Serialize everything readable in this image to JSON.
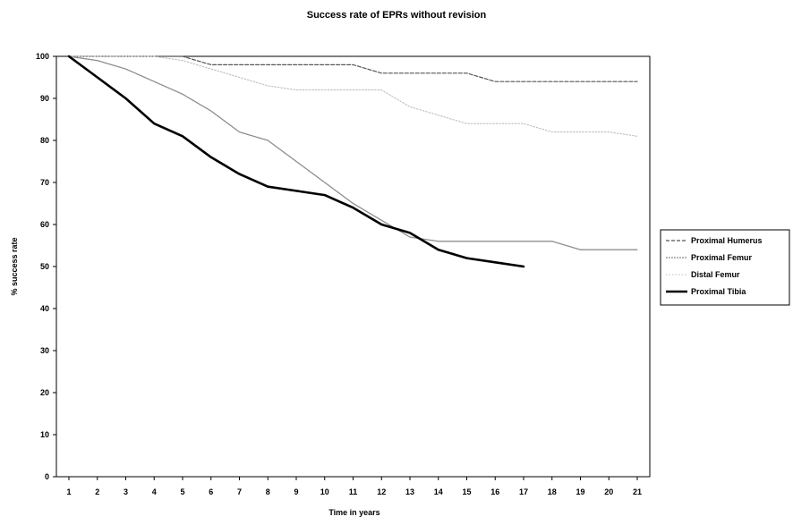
{
  "chart_data": {
    "type": "line",
    "title": "Success rate of EPRs without revision",
    "xlabel": "Time in years",
    "ylabel": "% success rate",
    "x": [
      1,
      2,
      3,
      4,
      5,
      6,
      7,
      8,
      9,
      10,
      11,
      12,
      13,
      14,
      15,
      16,
      17,
      18,
      19,
      20,
      21
    ],
    "xlim": [
      1,
      21
    ],
    "ylim": [
      0,
      100
    ],
    "yticks": [
      0,
      10,
      20,
      30,
      40,
      50,
      60,
      70,
      80,
      90,
      100
    ],
    "grid": false,
    "legend_position": "right",
    "series": [
      {
        "name": "Proximal Humerus",
        "color": "#555555",
        "style": "dashed",
        "values": [
          100,
          100,
          100,
          100,
          100,
          98,
          98,
          98,
          98,
          98,
          98,
          96,
          96,
          96,
          96,
          94,
          94,
          94,
          94,
          94,
          94
        ]
      },
      {
        "name": "Proximal Femur",
        "color": "#8c8c8c",
        "style": "jagged",
        "values": [
          100,
          99,
          97,
          94,
          91,
          87,
          82,
          80,
          75,
          70,
          65,
          61,
          57,
          56,
          56,
          56,
          56,
          56,
          54,
          54,
          54
        ]
      },
      {
        "name": "Distal Femur",
        "color": "#bdbdbd",
        "style": "dotted",
        "values": [
          100,
          100,
          100,
          100,
          99,
          97,
          95,
          93,
          92,
          92,
          92,
          92,
          88,
          86,
          84,
          84,
          84,
          82,
          82,
          82,
          81
        ]
      },
      {
        "name": "Proximal Tibia",
        "color": "#000000",
        "style": "solid",
        "values": [
          100,
          95,
          90,
          84,
          81,
          76,
          72,
          69,
          68,
          67,
          64,
          60,
          58,
          54,
          52,
          51,
          50,
          null,
          null,
          null,
          null
        ]
      }
    ]
  }
}
